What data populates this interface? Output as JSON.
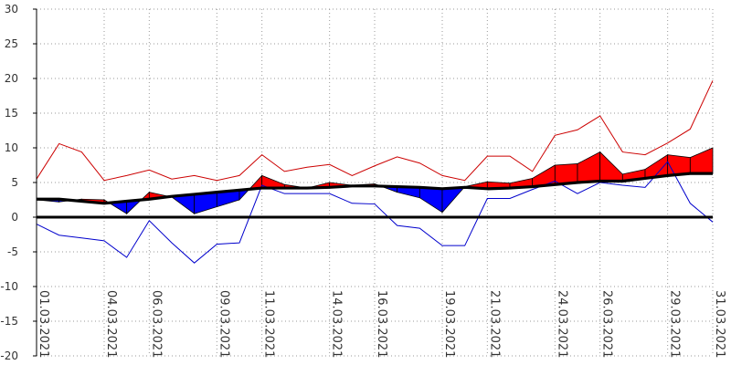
{
  "chart_data": {
    "type": "area",
    "ylim": [
      -20,
      30
    ],
    "yticks": [
      -20,
      -15,
      -10,
      -5,
      0,
      5,
      10,
      15,
      20,
      25,
      30
    ],
    "x": [
      "01.03.2021",
      "02.03.2021",
      "03.03.2021",
      "04.03.2021",
      "05.03.2021",
      "06.03.2021",
      "07.03.2021",
      "08.03.2021",
      "09.03.2021",
      "10.03.2021",
      "11.03.2021",
      "12.03.2021",
      "13.03.2021",
      "14.03.2021",
      "15.03.2021",
      "16.03.2021",
      "17.03.2021",
      "18.03.2021",
      "19.03.2021",
      "20.03.2021",
      "21.03.2021",
      "22.03.2021",
      "23.03.2021",
      "24.03.2021",
      "25.03.2021",
      "26.03.2021",
      "27.03.2021",
      "28.03.2021",
      "29.03.2021",
      "30.03.2021",
      "31.03.2021"
    ],
    "xtick_labels": [
      "01.03.2021",
      "04.03.2021",
      "06.03.2021",
      "09.03.2021",
      "11.03.2021",
      "14.03.2021",
      "16.03.2021",
      "19.03.2021",
      "21.03.2021",
      "24.03.2021",
      "26.03.2021",
      "29.03.2021",
      "31.03.2021"
    ],
    "xtick_index": [
      0,
      3,
      5,
      8,
      10,
      13,
      15,
      18,
      20,
      23,
      25,
      28,
      30
    ],
    "grid": true,
    "series": [
      {
        "role": "max",
        "color": "#cc0000",
        "values": [
          5.5,
          10.6,
          9.4,
          5.3,
          6.0,
          6.8,
          5.5,
          6.0,
          5.3,
          6.0,
          9.0,
          6.6,
          7.2,
          7.6,
          6.0,
          7.4,
          8.7,
          7.8,
          6.0,
          5.3,
          8.8,
          8.8,
          6.6,
          11.8,
          12.6,
          14.6,
          9.4,
          9.0,
          10.7,
          12.7,
          19.7
        ]
      },
      {
        "role": "min",
        "color": "#0000cc",
        "values": [
          -1.0,
          -2.6,
          -3.0,
          -3.4,
          -5.8,
          -0.5,
          -3.7,
          -6.6,
          -3.9,
          -3.7,
          4.6,
          3.4,
          3.4,
          3.4,
          2.0,
          1.9,
          -1.2,
          -1.6,
          -4.1,
          -4.1,
          2.7,
          2.7,
          4.0,
          5.2,
          3.4,
          5.0,
          4.6,
          4.3,
          8.0,
          2.0,
          -0.7
        ]
      },
      {
        "role": "mean",
        "color": "#000000",
        "values": [
          2.5,
          2.2,
          2.6,
          2.5,
          0.5,
          3.6,
          2.9,
          0.5,
          1.5,
          2.5,
          6.0,
          4.7,
          4.2,
          5.0,
          4.6,
          4.8,
          3.6,
          2.8,
          0.7,
          4.4,
          5.1,
          4.9,
          5.6,
          7.5,
          7.7,
          9.4,
          6.2,
          6.9,
          9.0,
          8.6,
          10.0
        ]
      },
      {
        "role": "climate-normal",
        "color": "#000000",
        "values": [
          2.6,
          2.6,
          2.3,
          2.0,
          2.3,
          2.6,
          3.0,
          3.3,
          3.6,
          3.9,
          4.2,
          4.2,
          4.2,
          4.3,
          4.5,
          4.5,
          4.4,
          4.3,
          4.1,
          4.3,
          4.1,
          4.2,
          4.4,
          4.7,
          5.0,
          5.2,
          5.2,
          5.6,
          6.0,
          6.3,
          6.3
        ]
      }
    ]
  }
}
